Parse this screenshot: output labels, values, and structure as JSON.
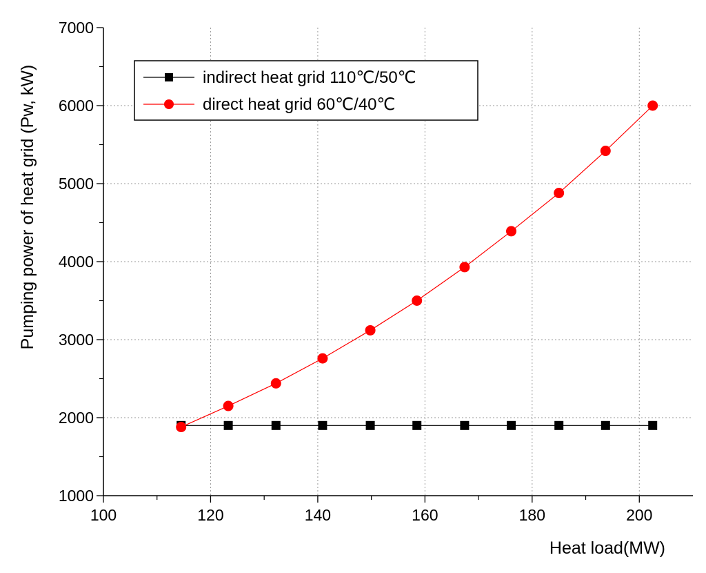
{
  "chart_data": {
    "type": "line",
    "title": "",
    "xlabel": "Heat load(MW)",
    "ylabel": "Pumping power of heat grid (Pw, kW)",
    "xlim": [
      100,
      210
    ],
    "ylim": [
      1000,
      7000
    ],
    "x_ticks": [
      "100",
      "120",
      "140",
      "160",
      "180",
      "200"
    ],
    "y_ticks": [
      "1000",
      "2000",
      "3000",
      "4000",
      "5000",
      "6000",
      "7000"
    ],
    "grid": true,
    "legend_position": "top-left",
    "series": [
      {
        "name": "indirect heat grid 110℃/50℃",
        "color": "#000000",
        "marker": "square",
        "x": [
          114.5,
          123.3,
          132.2,
          140.9,
          149.8,
          158.5,
          167.4,
          176.1,
          185.0,
          193.7,
          202.5
        ],
        "y": [
          1900,
          1900,
          1900,
          1900,
          1900,
          1900,
          1900,
          1900,
          1900,
          1900,
          1900
        ]
      },
      {
        "name": "direct heat grid 60℃/40℃",
        "color": "#ff0000",
        "marker": "circle",
        "x": [
          114.5,
          123.3,
          132.2,
          140.9,
          149.8,
          158.5,
          167.4,
          176.1,
          185.0,
          193.7,
          202.5
        ],
        "y": [
          1880,
          2150,
          2440,
          2760,
          3120,
          3500,
          3930,
          4390,
          4880,
          5420,
          6000
        ]
      }
    ]
  }
}
